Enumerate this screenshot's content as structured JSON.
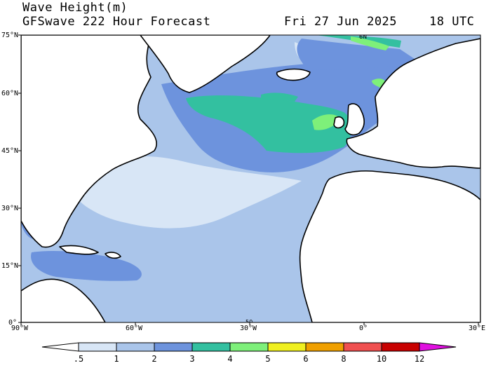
{
  "header": {
    "title": "Wave Height(m)",
    "subtitle": "GFSwave 222 Hour Forecast",
    "date": "Fri 27 Jun 2025",
    "time": "18 UTC"
  },
  "axes": {
    "lat_labels": [
      "75°N",
      "60°N",
      "45°N",
      "30°N",
      "15°N",
      "0°"
    ],
    "lon_labels": [
      "90°W",
      "60°W",
      "30°W",
      "0°",
      "30°E"
    ]
  },
  "contour_labels": [
    "6N",
    "50"
  ],
  "colorbar": {
    "labels": [
      ".5",
      "1",
      "2",
      "3",
      "4",
      "5",
      "6",
      "8",
      "10",
      "12"
    ],
    "colors": [
      "#ffffff",
      "#d8e6f6",
      "#aac5ea",
      "#6d93dd",
      "#33c0a0",
      "#7ef07a",
      "#f0f020",
      "#f0a000",
      "#f05050",
      "#c80000",
      "#e010e0"
    ]
  },
  "map_colors": {
    "land": "#ffffff",
    "coast": "#000000",
    "band_0_5_1": "#d8e6f6",
    "band_1_2": "#aac5ea",
    "band_2_3": "#6d93dd",
    "band_3_4": "#33c0a0",
    "band_4_5": "#7ef07a"
  }
}
